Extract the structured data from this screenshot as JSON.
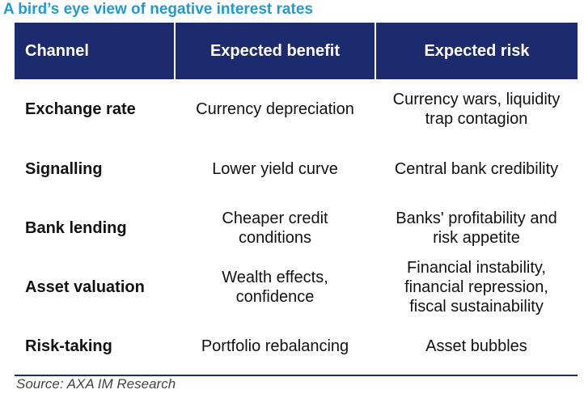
{
  "title": "A bird’s eye view of negative interest rates",
  "table": {
    "headers": [
      "Channel",
      "Expected benefit",
      "Expected risk"
    ],
    "rows": [
      {
        "channel": "Exchange rate",
        "benefit": [
          "Currency depreciation"
        ],
        "risk": [
          "Currency wars, liquidity",
          "trap contagion"
        ]
      },
      {
        "channel": "Signalling",
        "benefit": [
          "Lower yield curve"
        ],
        "risk": [
          "Central bank credibility"
        ]
      },
      {
        "channel": "Bank lending",
        "benefit": [
          "Cheaper credit",
          "conditions"
        ],
        "risk": [
          "Banks' profitability and",
          "risk appetite"
        ]
      },
      {
        "channel": "Asset valuation",
        "benefit": [
          "Wealth effects,",
          "confidence"
        ],
        "risk": [
          "Financial instability,",
          "financial repression,",
          "fiscal sustainability"
        ]
      },
      {
        "channel": "Risk-taking",
        "benefit": [
          "Portfolio rebalancing"
        ],
        "risk": [
          "Asset bubbles"
        ]
      }
    ]
  },
  "source": "Source: AXA IM Research",
  "colors": {
    "title": "#1f9bd1",
    "header_bg": "#1c2b6e",
    "header_text": "#ffffff",
    "rule": "#1c2b6e"
  }
}
